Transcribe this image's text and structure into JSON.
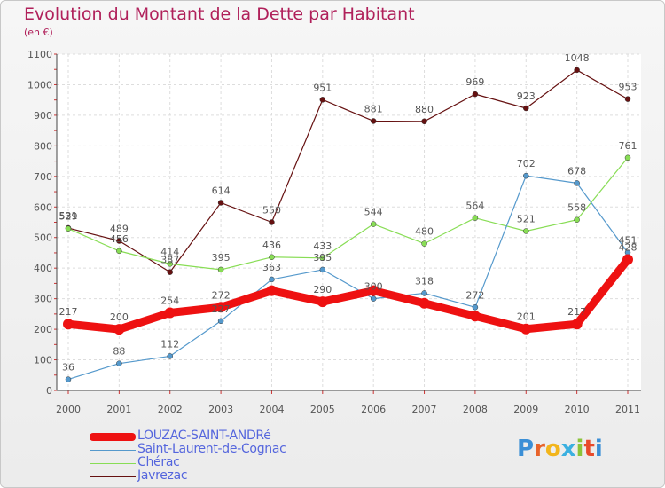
{
  "title": "Evolution du Montant de la Dette par Habitant",
  "unit_label": "(en €)",
  "logo": {
    "text": "ProXiti",
    "letters": [
      "P",
      "r",
      "o",
      "x",
      "i",
      "t",
      "i"
    ],
    "colors": [
      "#3b8fd6",
      "#e8632a",
      "#f2b51b",
      "#3bb0e0",
      "#8cc43a",
      "#e84a2a",
      "#3b8fd6"
    ]
  },
  "chart_data": {
    "type": "line",
    "title": "Evolution du Montant de la Dette par Habitant",
    "ylabel": "(en €)",
    "xlabel": "",
    "x": [
      "2000",
      "2001",
      "2002",
      "2003",
      "2004",
      "2005",
      "2006",
      "2007",
      "2008",
      "2009",
      "2010",
      "2011"
    ],
    "ylim": [
      0,
      1100
    ],
    "yticks": [
      "0",
      "100",
      "200",
      "300",
      "400",
      "500",
      "600",
      "700",
      "800",
      "900",
      "1000",
      "1100"
    ],
    "grid": true,
    "legend_position": "bottom-left",
    "series": [
      {
        "name": "LOUZAC-SAINT-ANDRé",
        "color": "#ee1111",
        "values": [
          217,
          200,
          254,
          272,
          326,
          290,
          326,
          285,
          243,
          201,
          217,
          428
        ],
        "labels": [
          "217",
          "200",
          "254",
          "272",
          "",
          "290",
          "",
          "",
          "",
          "201",
          "217",
          "428"
        ]
      },
      {
        "name": "Saint-Laurent-de-Cognac",
        "color": "#5599cc",
        "values": [
          36,
          88,
          112,
          227,
          363,
          395,
          300,
          318,
          272,
          702,
          678,
          451
        ],
        "labels": [
          "36",
          "88",
          "112",
          "227",
          "363",
          "395",
          "300",
          "318",
          "272",
          "702",
          "678",
          "451"
        ]
      },
      {
        "name": "Chérac",
        "color": "#88dd55",
        "values": [
          529,
          456,
          414,
          395,
          436,
          433,
          544,
          480,
          564,
          521,
          558,
          761
        ],
        "labels": [
          "529",
          "456",
          "414",
          "395",
          "436",
          "433",
          "544",
          "480",
          "564",
          "521",
          "558",
          "761"
        ]
      },
      {
        "name": "Javrezac",
        "color": "#661111",
        "values": [
          531,
          489,
          387,
          614,
          550,
          951,
          881,
          880,
          969,
          923,
          1048,
          953
        ],
        "labels": [
          "531",
          "489",
          "387",
          "614",
          "550",
          "951",
          "881",
          "880",
          "969",
          "923",
          "1048",
          "953"
        ]
      }
    ]
  }
}
